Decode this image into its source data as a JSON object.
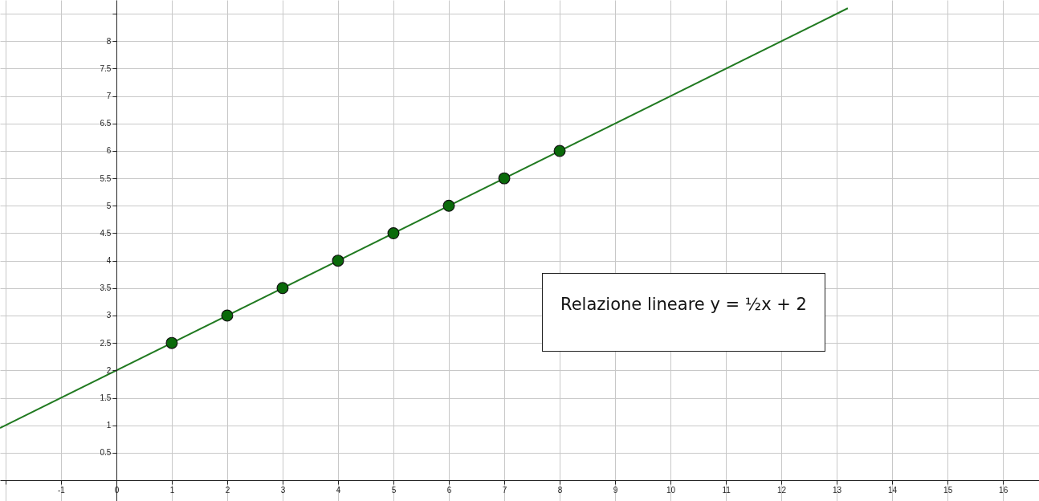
{
  "chart_data": {
    "type": "scatter",
    "xlim": [
      -2.1,
      16.65
    ],
    "ylim": [
      -0.38,
      8.75
    ],
    "xticks": [
      {
        "value": -2,
        "label": null
      },
      -1,
      0,
      1,
      2,
      3,
      4,
      5,
      6,
      7,
      8,
      9,
      10,
      11,
      12,
      13,
      14,
      15,
      16
    ],
    "yticks": [
      0.5,
      1,
      1.5,
      2,
      2.5,
      3,
      3.5,
      4,
      4.5,
      5,
      5.5,
      6,
      6.5,
      7,
      7.5,
      8,
      {
        "value": 8.5,
        "label": null
      }
    ],
    "grid": true,
    "marker": "circle",
    "series": [
      {
        "type": "line",
        "marker": "none",
        "color": "#217a21",
        "x": [
          -2.1,
          13.2
        ],
        "values": [
          0.95,
          8.6
        ]
      },
      {
        "color": "#0a6a0a",
        "x": [
          1,
          2,
          3,
          4,
          5,
          6,
          7,
          8
        ],
        "values": [
          2.5,
          3,
          3.5,
          4,
          4.5,
          5,
          5.5,
          6
        ]
      }
    ],
    "annotations": [
      "Relazione lineare  y = ½x + 2"
    ]
  }
}
